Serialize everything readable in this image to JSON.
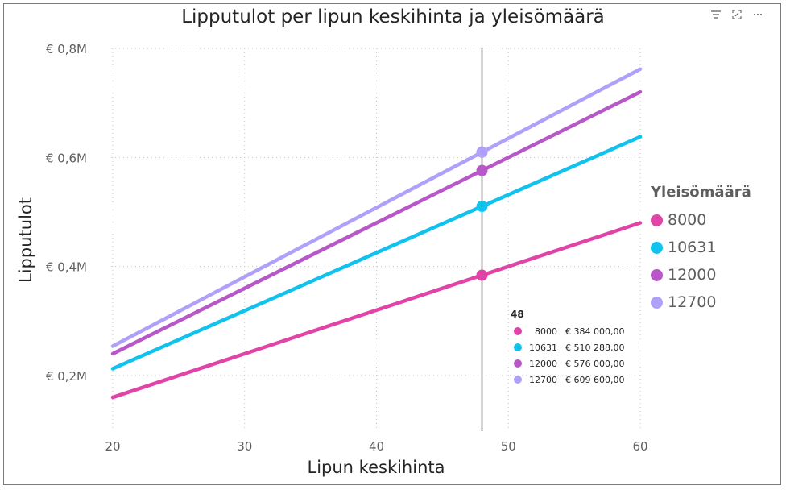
{
  "header": {
    "title": "Lipputulot per lipun keskihinta ja yleisömäärä",
    "icons": [
      "filter-icon",
      "focus-mode-icon",
      "more-options-icon"
    ]
  },
  "chart_data": {
    "type": "line",
    "title": "Lipputulot per lipun keskihinta ja yleisömäärä",
    "xlabel": "Lipun keskihinta",
    "ylabel": "Lipputulot",
    "xlim": [
      18,
      61
    ],
    "ylim": [
      60000,
      800000
    ],
    "x": [
      20,
      60
    ],
    "x_ticks": [
      "20",
      "30",
      "40",
      "50",
      "60"
    ],
    "y_ticks": [
      {
        "value": 200000,
        "label": "€ 0,2M"
      },
      {
        "value": 400000,
        "label": "€ 0,4M"
      },
      {
        "value": 600000,
        "label": "€ 0,6M"
      },
      {
        "value": 800000,
        "label": "€ 0,8M"
      }
    ],
    "grid": true,
    "legend_title": "Yleisömäärä",
    "legend_position": "right",
    "series": [
      {
        "name": "8000",
        "color": "#E044A7",
        "values": [
          160000,
          480000
        ]
      },
      {
        "name": "10631",
        "color": "#12C2EE",
        "values": [
          212620,
          637860
        ]
      },
      {
        "name": "12000",
        "color": "#B857C8",
        "values": [
          240000,
          720000
        ]
      },
      {
        "name": "12700",
        "color": "#B1A0FA",
        "values": [
          254000,
          762000
        ]
      }
    ],
    "crosshair_x": 48,
    "tooltip": {
      "header": "48",
      "rows": [
        {
          "category": "8000",
          "value": "€ 384 000,00",
          "color": "#E044A7"
        },
        {
          "category": "10631",
          "value": "€ 510 288,00",
          "color": "#12C2EE"
        },
        {
          "category": "12000",
          "value": "€ 576 000,00",
          "color": "#B857C8"
        },
        {
          "category": "12700",
          "value": "€ 609 600,00",
          "color": "#B1A0FA"
        }
      ]
    }
  }
}
